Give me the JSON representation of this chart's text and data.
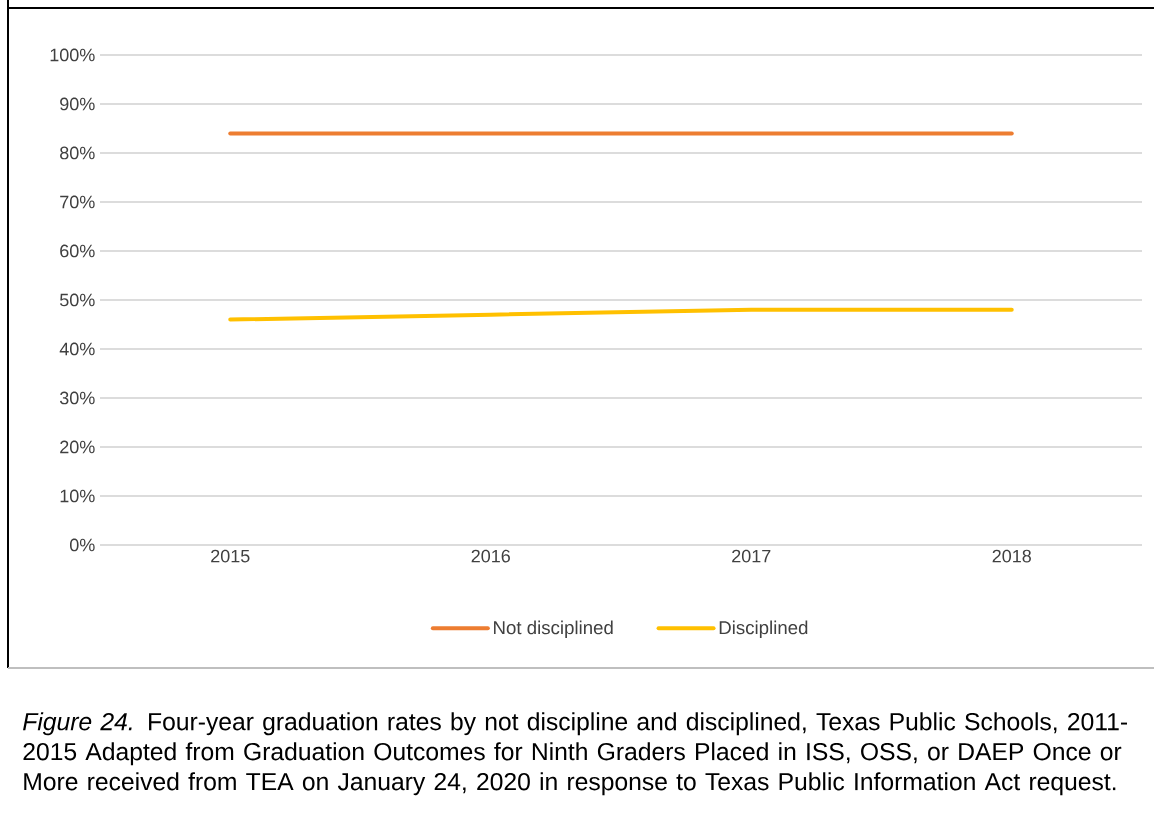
{
  "chart_data": {
    "type": "line",
    "categories": [
      "2015",
      "2016",
      "2017",
      "2018"
    ],
    "series": [
      {
        "name": "Not disciplined",
        "color": "#ed7d31",
        "values": [
          84,
          84,
          84,
          84
        ]
      },
      {
        "name": "Disciplined",
        "color": "#ffc000",
        "values": [
          46,
          47,
          48,
          48
        ]
      }
    ],
    "ylim": [
      0,
      100
    ],
    "yticks": [
      {
        "value": 0,
        "label": "0%"
      },
      {
        "value": 10,
        "label": "10%"
      },
      {
        "value": 20,
        "label": "20%"
      },
      {
        "value": 30,
        "label": "30%"
      },
      {
        "value": 40,
        "label": "40%"
      },
      {
        "value": 50,
        "label": "50%"
      },
      {
        "value": 60,
        "label": "60%"
      },
      {
        "value": 70,
        "label": "70%"
      },
      {
        "value": 80,
        "label": "80%"
      },
      {
        "value": 90,
        "label": "90%"
      },
      {
        "value": 100,
        "label": "100%"
      }
    ],
    "grid": "y",
    "legend": "bottom",
    "marker": "none",
    "line_style": "solid",
    "annotations": [
      "*Figure 24.*  Four-year graduation rates by not discipline and disciplined, Texas Public Schools, 2011-2015 Adapted from Graduation Outcomes for Ninth Graders Placed in ISS, OSS, or DAEP Once or More received from TEA on January 24, 2020 in response to Texas Public Information Act request."
    ]
  }
}
